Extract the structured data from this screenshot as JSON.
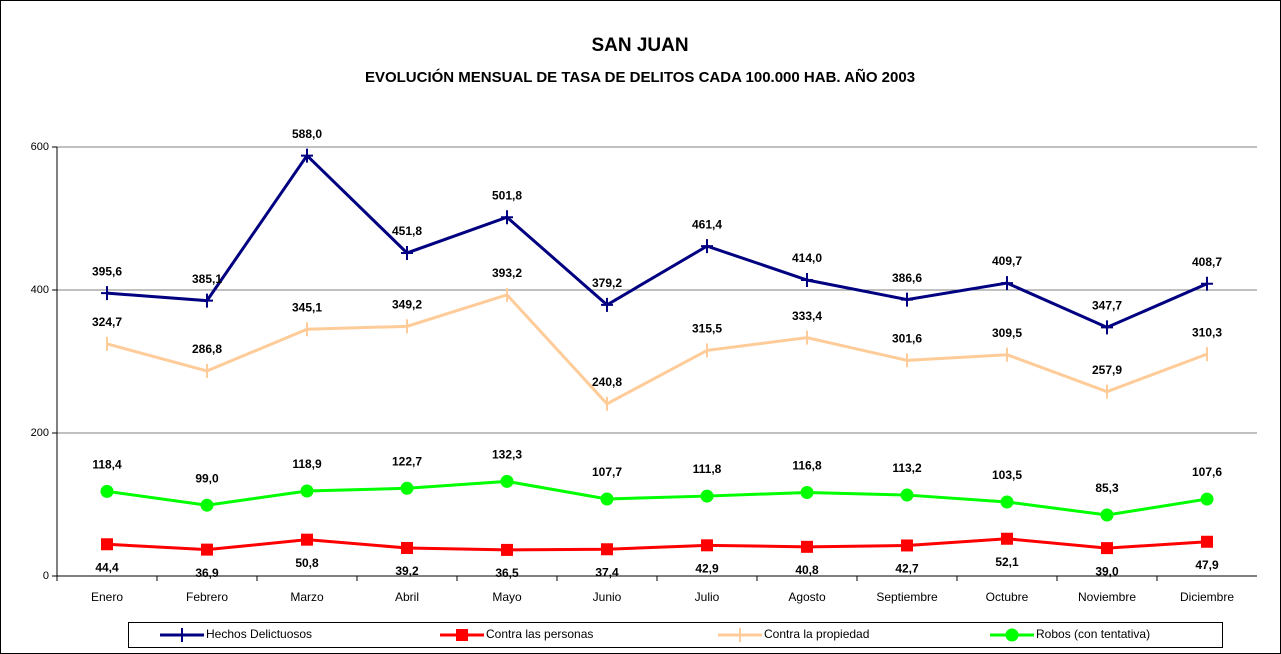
{
  "chart_data": {
    "type": "line",
    "title": "SAN JUAN",
    "subtitle": "EVOLUCIÓN MENSUAL DE TASA DE DELITOS CADA 100.000 HAB. AÑO 2003",
    "categories": [
      "Enero",
      "Febrero",
      "Marzo",
      "Abril",
      "Mayo",
      "Junio",
      "Julio",
      "Agosto",
      "Septiembre",
      "Octubre",
      "Noviembre",
      "Diciembre"
    ],
    "ylim": [
      0,
      600
    ],
    "yticks": [
      0,
      200,
      400,
      600
    ],
    "grid": true,
    "legend": "bottom",
    "series": [
      {
        "name": "Hechos Delictuosos",
        "color": "#000080",
        "marker": "plus",
        "label_position": "above",
        "values": [
          395.6,
          385.1,
          588.0,
          451.8,
          501.8,
          379.2,
          461.4,
          414.0,
          386.6,
          409.7,
          347.7,
          408.7
        ],
        "value_labels": [
          "395,6",
          "385,1",
          "588,0",
          "451,8",
          "501,8",
          "379,2",
          "461,4",
          "414,0",
          "386,6",
          "409,7",
          "347,7",
          "408,7"
        ]
      },
      {
        "name": "Contra las personas",
        "color": "#ff0000",
        "marker": "square",
        "label_position": "below",
        "values": [
          44.4,
          36.9,
          50.8,
          39.2,
          36.5,
          37.4,
          42.9,
          40.8,
          42.7,
          52.1,
          39.0,
          47.9
        ],
        "value_labels": [
          "44,4",
          "36,9",
          "50,8",
          "39,2",
          "36,5",
          "37,4",
          "42,9",
          "40,8",
          "42,7",
          "52,1",
          "39,0",
          "47,9"
        ]
      },
      {
        "name": "Contra la propiedad",
        "color": "#ffcc99",
        "marker": "dash",
        "label_position": "above",
        "values": [
          324.7,
          286.8,
          345.1,
          349.2,
          393.2,
          240.8,
          315.5,
          333.4,
          301.6,
          309.5,
          257.9,
          310.3
        ],
        "value_labels": [
          "324,7",
          "286,8",
          "345,1",
          "349,2",
          "393,2",
          "240,8",
          "315,5",
          "333,4",
          "301,6",
          "309,5",
          "257,9",
          "310,3"
        ]
      },
      {
        "name": "Robos (con tentativa)",
        "color": "#00ff00",
        "marker": "circle",
        "label_position": "above",
        "values": [
          118.4,
          99.0,
          118.9,
          122.7,
          132.3,
          107.7,
          111.8,
          116.8,
          113.2,
          103.5,
          85.3,
          107.6
        ],
        "value_labels": [
          "118,4",
          "99,0",
          "118,9",
          "122,7",
          "132,3",
          "107,7",
          "111,8",
          "116,8",
          "113,2",
          "103,5",
          "85,3",
          "107,6"
        ]
      }
    ]
  }
}
